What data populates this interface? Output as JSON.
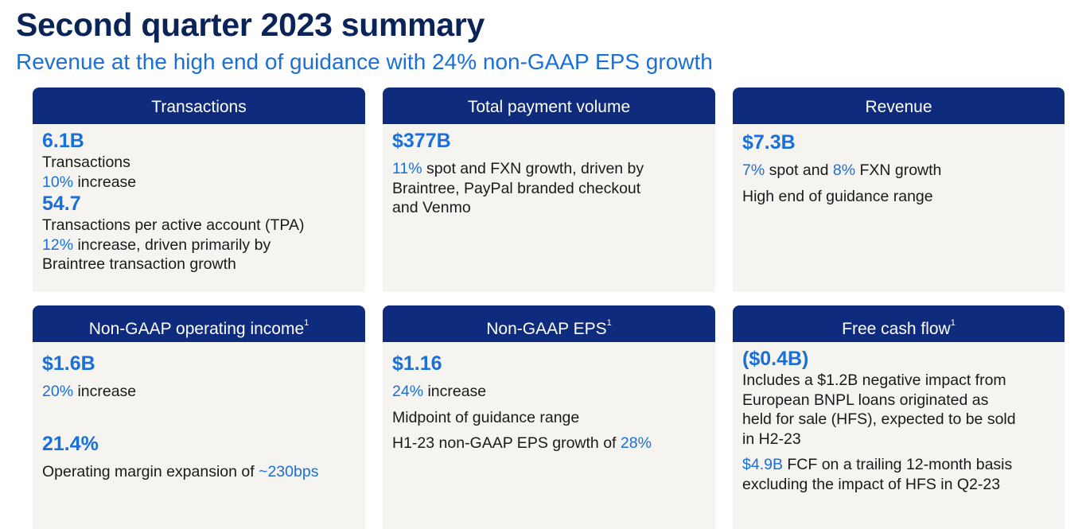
{
  "title": "Second quarter 2023 summary",
  "subtitle": "Revenue at the high end of guidance with 24% non-GAAP EPS growth",
  "colors": {
    "navy": "#0f2b7d",
    "accent_blue": "#1a6fd8",
    "title_navy": "#0a2458",
    "card_bg": "#f5f4f0"
  },
  "cards": {
    "transactions": {
      "header": "Transactions",
      "value1": "6.1B",
      "line1": "Transactions",
      "line2_hl": "10%",
      "line2_rest": " increase",
      "value2": "54.7",
      "line3": "Transactions per active account (TPA)",
      "line4_hl": "12%",
      "line4_rest": " increase, driven primarily by",
      "line5": "Braintree transaction growth"
    },
    "tpv": {
      "header": "Total payment volume",
      "value": "$377B",
      "line1_hl": "11%",
      "line1_rest": " spot and FXN growth, driven by",
      "line2": "Braintree, PayPal branded checkout",
      "line3": "and Venmo"
    },
    "revenue": {
      "header": "Revenue",
      "value": "$7.3B",
      "line1_hl1": "7%",
      "line1_mid": " spot and ",
      "line1_hl2": "8%",
      "line1_rest": " FXN growth",
      "line2": "High end of guidance range"
    },
    "opinc": {
      "header": "Non-GAAP operating income",
      "footnote": "1",
      "value1": "$1.6B",
      "line1_hl": "20%",
      "line1_rest": " increase",
      "value2": "21.4%",
      "line2_text": "Operating margin expansion of ",
      "line2_hl": "~230bps"
    },
    "eps": {
      "header": "Non-GAAP EPS",
      "footnote": "1",
      "value": "$1.16",
      "line1_hl": "24%",
      "line1_rest": " increase",
      "line2": "Midpoint of guidance range",
      "line3_text": "H1-23 non-GAAP EPS growth of ",
      "line3_hl": "28%"
    },
    "fcf": {
      "header": "Free cash flow",
      "footnote": "1",
      "value": "($0.4B)",
      "line1": "Includes a $1.2B negative impact from",
      "line2": "European BNPL loans originated as",
      "line3": "held for sale (HFS), expected to be sold",
      "line4": "in H2-23",
      "line5_hl": "$4.9B",
      "line5_rest": " FCF on a trailing 12-month basis",
      "line6": "excluding the impact of HFS in Q2-23"
    }
  }
}
